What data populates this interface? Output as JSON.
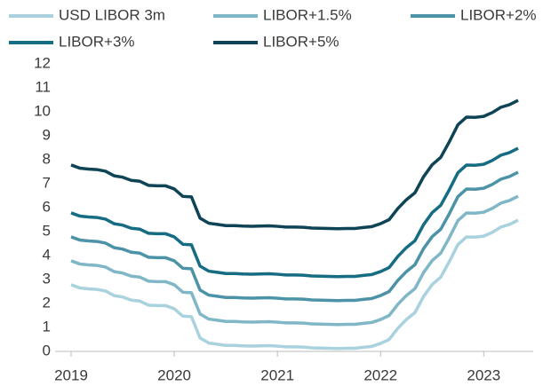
{
  "chart_data": {
    "type": "line",
    "categories": [
      "2019",
      null,
      null,
      null,
      null,
      null,
      null,
      null,
      null,
      null,
      null,
      null,
      "2020",
      null,
      null,
      null,
      null,
      null,
      null,
      null,
      null,
      null,
      null,
      null,
      "2021",
      null,
      null,
      null,
      null,
      null,
      null,
      null,
      null,
      null,
      null,
      null,
      "2022",
      null,
      null,
      null,
      null,
      null,
      null,
      null,
      null,
      null,
      null,
      null,
      "2023",
      null,
      null,
      null,
      null
    ],
    "series": [
      {
        "name": "USD LIBOR 3m",
        "color": "#a9d2de",
        "values": [
          2.78,
          2.65,
          2.61,
          2.59,
          2.52,
          2.33,
          2.27,
          2.14,
          2.1,
          1.93,
          1.91,
          1.91,
          1.78,
          1.47,
          1.45,
          0.56,
          0.35,
          0.3,
          0.25,
          0.25,
          0.23,
          0.22,
          0.23,
          0.24,
          0.22,
          0.19,
          0.19,
          0.18,
          0.15,
          0.14,
          0.13,
          0.12,
          0.13,
          0.13,
          0.17,
          0.21,
          0.33,
          0.5,
          0.96,
          1.33,
          1.62,
          2.29,
          2.79,
          3.1,
          3.75,
          4.46,
          4.78,
          4.77,
          4.81,
          4.97,
          5.19,
          5.3,
          5.48
        ]
      },
      {
        "name": "LIBOR+1.5%",
        "color": "#80b7c7",
        "values": [
          3.78,
          3.65,
          3.61,
          3.59,
          3.52,
          3.33,
          3.27,
          3.14,
          3.1,
          2.93,
          2.91,
          2.91,
          2.78,
          2.47,
          2.45,
          1.56,
          1.35,
          1.3,
          1.25,
          1.25,
          1.23,
          1.22,
          1.23,
          1.24,
          1.22,
          1.19,
          1.19,
          1.18,
          1.15,
          1.14,
          1.13,
          1.12,
          1.13,
          1.13,
          1.17,
          1.21,
          1.33,
          1.5,
          1.96,
          2.33,
          2.62,
          3.29,
          3.79,
          4.1,
          4.75,
          5.46,
          5.78,
          5.77,
          5.81,
          5.97,
          6.19,
          6.3,
          6.48
        ]
      },
      {
        "name": "LIBOR+2%",
        "color": "#4d93a7",
        "values": [
          4.78,
          4.65,
          4.61,
          4.59,
          4.52,
          4.33,
          4.27,
          4.14,
          4.1,
          3.93,
          3.91,
          3.91,
          3.78,
          3.47,
          3.45,
          2.56,
          2.35,
          2.3,
          2.25,
          2.25,
          2.23,
          2.22,
          2.23,
          2.24,
          2.22,
          2.19,
          2.19,
          2.18,
          2.15,
          2.14,
          2.13,
          2.12,
          2.13,
          2.13,
          2.17,
          2.21,
          2.33,
          2.5,
          2.96,
          3.33,
          3.62,
          4.29,
          4.79,
          5.1,
          5.75,
          6.46,
          6.78,
          6.77,
          6.81,
          6.97,
          7.19,
          7.3,
          7.48
        ]
      },
      {
        "name": "LIBOR+3%",
        "color": "#166c82",
        "values": [
          5.78,
          5.65,
          5.61,
          5.59,
          5.52,
          5.33,
          5.27,
          5.14,
          5.1,
          4.93,
          4.91,
          4.91,
          4.78,
          4.47,
          4.45,
          3.56,
          3.35,
          3.3,
          3.25,
          3.25,
          3.23,
          3.22,
          3.23,
          3.24,
          3.22,
          3.19,
          3.19,
          3.18,
          3.15,
          3.14,
          3.13,
          3.12,
          3.13,
          3.13,
          3.17,
          3.21,
          3.33,
          3.5,
          3.96,
          4.33,
          4.62,
          5.29,
          5.79,
          6.1,
          6.75,
          7.46,
          7.78,
          7.77,
          7.81,
          7.97,
          8.19,
          8.3,
          8.48
        ]
      },
      {
        "name": "LIBOR+5%",
        "color": "#0e4456",
        "values": [
          7.78,
          7.65,
          7.61,
          7.59,
          7.52,
          7.33,
          7.27,
          7.14,
          7.1,
          6.93,
          6.91,
          6.91,
          6.78,
          6.47,
          6.45,
          5.56,
          5.35,
          5.3,
          5.25,
          5.25,
          5.23,
          5.22,
          5.23,
          5.24,
          5.22,
          5.19,
          5.19,
          5.18,
          5.15,
          5.14,
          5.13,
          5.12,
          5.13,
          5.13,
          5.17,
          5.21,
          5.33,
          5.5,
          5.96,
          6.33,
          6.62,
          7.29,
          7.79,
          8.1,
          8.75,
          9.46,
          9.78,
          9.77,
          9.81,
          9.97,
          10.19,
          10.3,
          10.48
        ]
      }
    ],
    "ylim": [
      0,
      12
    ],
    "yticks": [
      0,
      1,
      2,
      3,
      4,
      5,
      6,
      7,
      8,
      9,
      10,
      11,
      12
    ],
    "grid": false
  }
}
